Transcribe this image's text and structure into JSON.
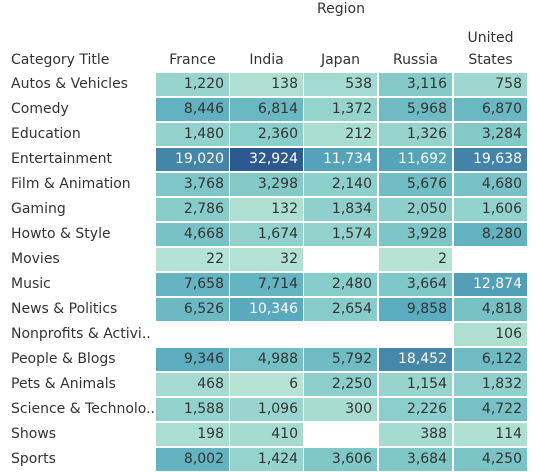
{
  "chart_data": {
    "type": "heatmap",
    "title": "",
    "column_group_title": "Region",
    "row_header": "Category Title",
    "columns": [
      "France",
      "India",
      "Japan",
      "Russia",
      "United States"
    ],
    "rows": [
      "Autos & Vehicles",
      "Comedy",
      "Education",
      "Entertainment",
      "Film & Animation",
      "Gaming",
      "Howto & Style",
      "Movies",
      "Music",
      "News & Politics",
      "Nonprofits & Activi..",
      "People & Blogs",
      "Pets & Animals",
      "Science & Technolo..",
      "Shows",
      "Sports"
    ],
    "values": [
      [
        1220,
        138,
        538,
        3116,
        758
      ],
      [
        8446,
        6814,
        1372,
        5968,
        6870
      ],
      [
        1480,
        2360,
        212,
        1326,
        3284
      ],
      [
        19020,
        32924,
        11734,
        11692,
        19638
      ],
      [
        3768,
        3298,
        2140,
        5676,
        4680
      ],
      [
        2786,
        132,
        1834,
        2050,
        1606
      ],
      [
        4668,
        1674,
        1574,
        3928,
        8280
      ],
      [
        22,
        32,
        null,
        2,
        null
      ],
      [
        7658,
        7714,
        2480,
        3664,
        12874
      ],
      [
        6526,
        10346,
        2654,
        9858,
        4818
      ],
      [
        null,
        null,
        null,
        null,
        106
      ],
      [
        9346,
        4988,
        5792,
        18452,
        6122
      ],
      [
        468,
        6,
        2250,
        1154,
        1832
      ],
      [
        1588,
        1096,
        300,
        2226,
        4722
      ],
      [
        198,
        410,
        null,
        388,
        114
      ],
      [
        8002,
        1424,
        3606,
        3684,
        4250
      ]
    ],
    "color_scale": {
      "low": "#b8e4d5",
      "mid": "#66b6c2",
      "high": "#2c5a8f"
    }
  }
}
